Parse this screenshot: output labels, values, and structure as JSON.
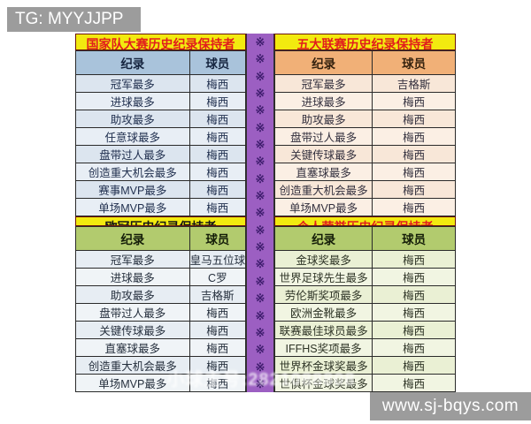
{
  "page": {
    "tg_label": "TG: MYYJJPP",
    "site_label": "www.sj-bqys.com",
    "watermark": "小球主号:2821088808"
  },
  "divider": {
    "glyph": "※",
    "count": 21
  },
  "colors": {
    "title_bg": "#F2EA0F",
    "title_red_text": "#E11D1D",
    "title_dark_text": "#151515",
    "national_header_bg": "#A9C3DB",
    "league_header_bg": "#F1B077",
    "green_header_bg": "#B2CB6E",
    "divider_bg": "#9C5FC2",
    "divider_glyph_color": "#3F1D6E",
    "overlay_box_bg": "#9C9C9C"
  },
  "tables": {
    "national": {
      "title": "国家队大赛历史纪录保持者",
      "columns": [
        "纪录",
        "球员"
      ],
      "rows": [
        [
          "冠军最多",
          "梅西"
        ],
        [
          "进球最多",
          "梅西"
        ],
        [
          "助攻最多",
          "梅西"
        ],
        [
          "任意球最多",
          "梅西"
        ],
        [
          "盘带过人最多",
          "梅西"
        ],
        [
          "创造重大机会最多",
          "梅西"
        ],
        [
          "赛事MVP最多",
          "梅西"
        ],
        [
          "单场MVP最多",
          "梅西"
        ]
      ]
    },
    "league": {
      "title": "五大联赛历史纪录保持者",
      "columns": [
        "纪录",
        "球员"
      ],
      "rows": [
        [
          "冠军最多",
          "吉格斯"
        ],
        [
          "进球最多",
          "梅西"
        ],
        [
          "助攻最多",
          "梅西"
        ],
        [
          "盘带过人最多",
          "梅西"
        ],
        [
          "关键传球最多",
          "梅西"
        ],
        [
          "直塞球最多",
          "梅西"
        ],
        [
          "创造重大机会最多",
          "梅西"
        ],
        [
          "单场MVP最多",
          "梅西"
        ]
      ]
    },
    "ucl": {
      "title": "欧冠历史纪录保持者",
      "columns": [
        "纪录",
        "球员"
      ],
      "rows": [
        [
          "冠军最多",
          "皇马五位球员"
        ],
        [
          "进球最多",
          "C罗"
        ],
        [
          "助攻最多",
          "吉格斯"
        ],
        [
          "盘带过人最多",
          "梅西"
        ],
        [
          "关键传球最多",
          "梅西"
        ],
        [
          "直塞球最多",
          "梅西"
        ],
        [
          "创造重大机会最多",
          "梅西"
        ],
        [
          "单场MVP最多",
          "梅西"
        ]
      ]
    },
    "honors": {
      "title": "个人荣誉历史纪录保持者",
      "columns": [
        "纪录",
        "球员"
      ],
      "rows": [
        [
          "金球奖最多",
          "梅西"
        ],
        [
          "世界足球先生最多",
          "梅西"
        ],
        [
          "劳伦斯奖项最多",
          "梅西"
        ],
        [
          "欧洲金靴最多",
          "梅西"
        ],
        [
          "联赛最佳球员最多",
          "梅西"
        ],
        [
          "IFFHS奖项最多",
          "梅西"
        ],
        [
          "世界杯金球奖最多",
          "梅西"
        ],
        [
          "世俱杯金球奖最多",
          "梅西"
        ]
      ]
    }
  }
}
